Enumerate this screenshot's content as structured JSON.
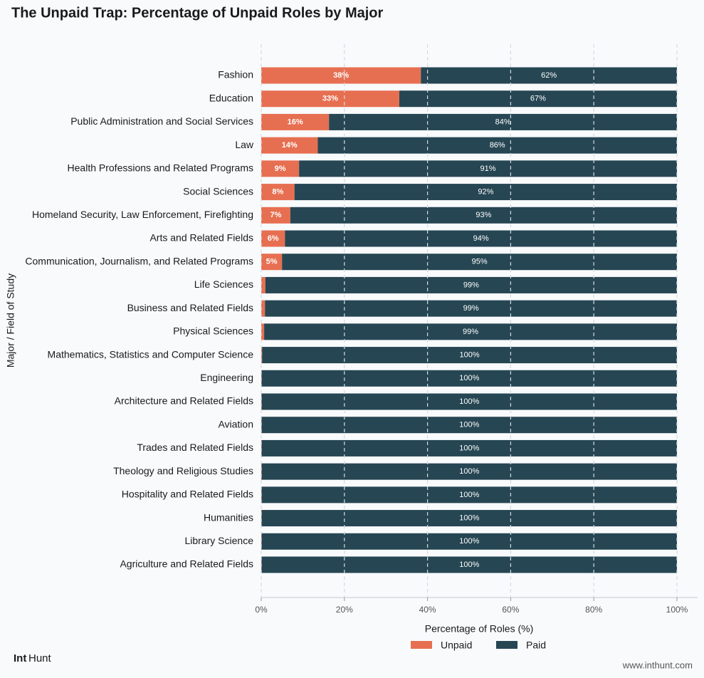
{
  "chart_data": {
    "type": "stacked-barh",
    "title": "The Unpaid Trap: Percentage of Unpaid Roles by Major",
    "xlabel": "Percentage of Roles (%)",
    "ylabel": "Major / Field of Study",
    "categories": [
      "Fashion",
      "Education",
      "Public Administration and Social Services",
      "Law",
      "Health Professions and Related Programs",
      "Social Sciences",
      "Homeland Security, Law Enforcement, Firefighting",
      "Arts and Related Fields",
      "Communication, Journalism, and Related Programs",
      "Life Sciences",
      "Business and Related Fields",
      "Physical Sciences",
      "Mathematics, Statistics and Computer Science",
      "Engineering",
      "Architecture and Related Fields",
      "Aviation",
      "Trades and Related Fields",
      "Theology and Religious Studies",
      "Hospitality and Related Fields",
      "Humanities",
      "Library Science",
      "Agriculture and Related Fields"
    ],
    "series": [
      {
        "name": "Unpaid",
        "color": "#e76f51",
        "values": [
          38.4,
          33.2,
          16.3,
          13.6,
          9.1,
          8.0,
          7.0,
          5.7,
          5.0,
          1.0,
          0.9,
          0.7,
          0.2,
          0.1,
          0.1,
          0.1,
          0.1,
          0.1,
          0.1,
          0.1,
          0.1,
          0.1
        ],
        "value_labels": [
          "38%",
          "33%",
          "16%",
          "14%",
          "9%",
          "8%",
          "7%",
          "6%",
          "5%",
          null,
          null,
          null,
          null,
          null,
          null,
          null,
          null,
          null,
          null,
          null,
          null,
          null
        ]
      },
      {
        "name": "Paid",
        "color": "#264653",
        "values": [
          61.6,
          66.8,
          83.7,
          86.4,
          90.9,
          92.0,
          93.0,
          94.3,
          95.0,
          99.0,
          99.1,
          99.3,
          99.8,
          99.9,
          99.9,
          99.9,
          99.9,
          99.9,
          99.9,
          99.9,
          99.9,
          99.9
        ],
        "value_labels": [
          "62%",
          "67%",
          "84%",
          "86%",
          "91%",
          "92%",
          "93%",
          "94%",
          "95%",
          "99%",
          "99%",
          "99%",
          "100%",
          "100%",
          "100%",
          "100%",
          "100%",
          "100%",
          "100%",
          "100%",
          "100%",
          "100%"
        ]
      }
    ],
    "xlim": [
      0,
      105
    ],
    "xticks": [
      {
        "value": 0,
        "label": "0%"
      },
      {
        "value": 20,
        "label": "20%"
      },
      {
        "value": 40,
        "label": "40%"
      },
      {
        "value": 60,
        "label": "60%"
      },
      {
        "value": 80,
        "label": "80%"
      },
      {
        "value": 100,
        "label": "100%"
      }
    ],
    "grid": true,
    "logo": [
      "Int",
      "Hunt"
    ],
    "website": "www.inthunt.com"
  }
}
